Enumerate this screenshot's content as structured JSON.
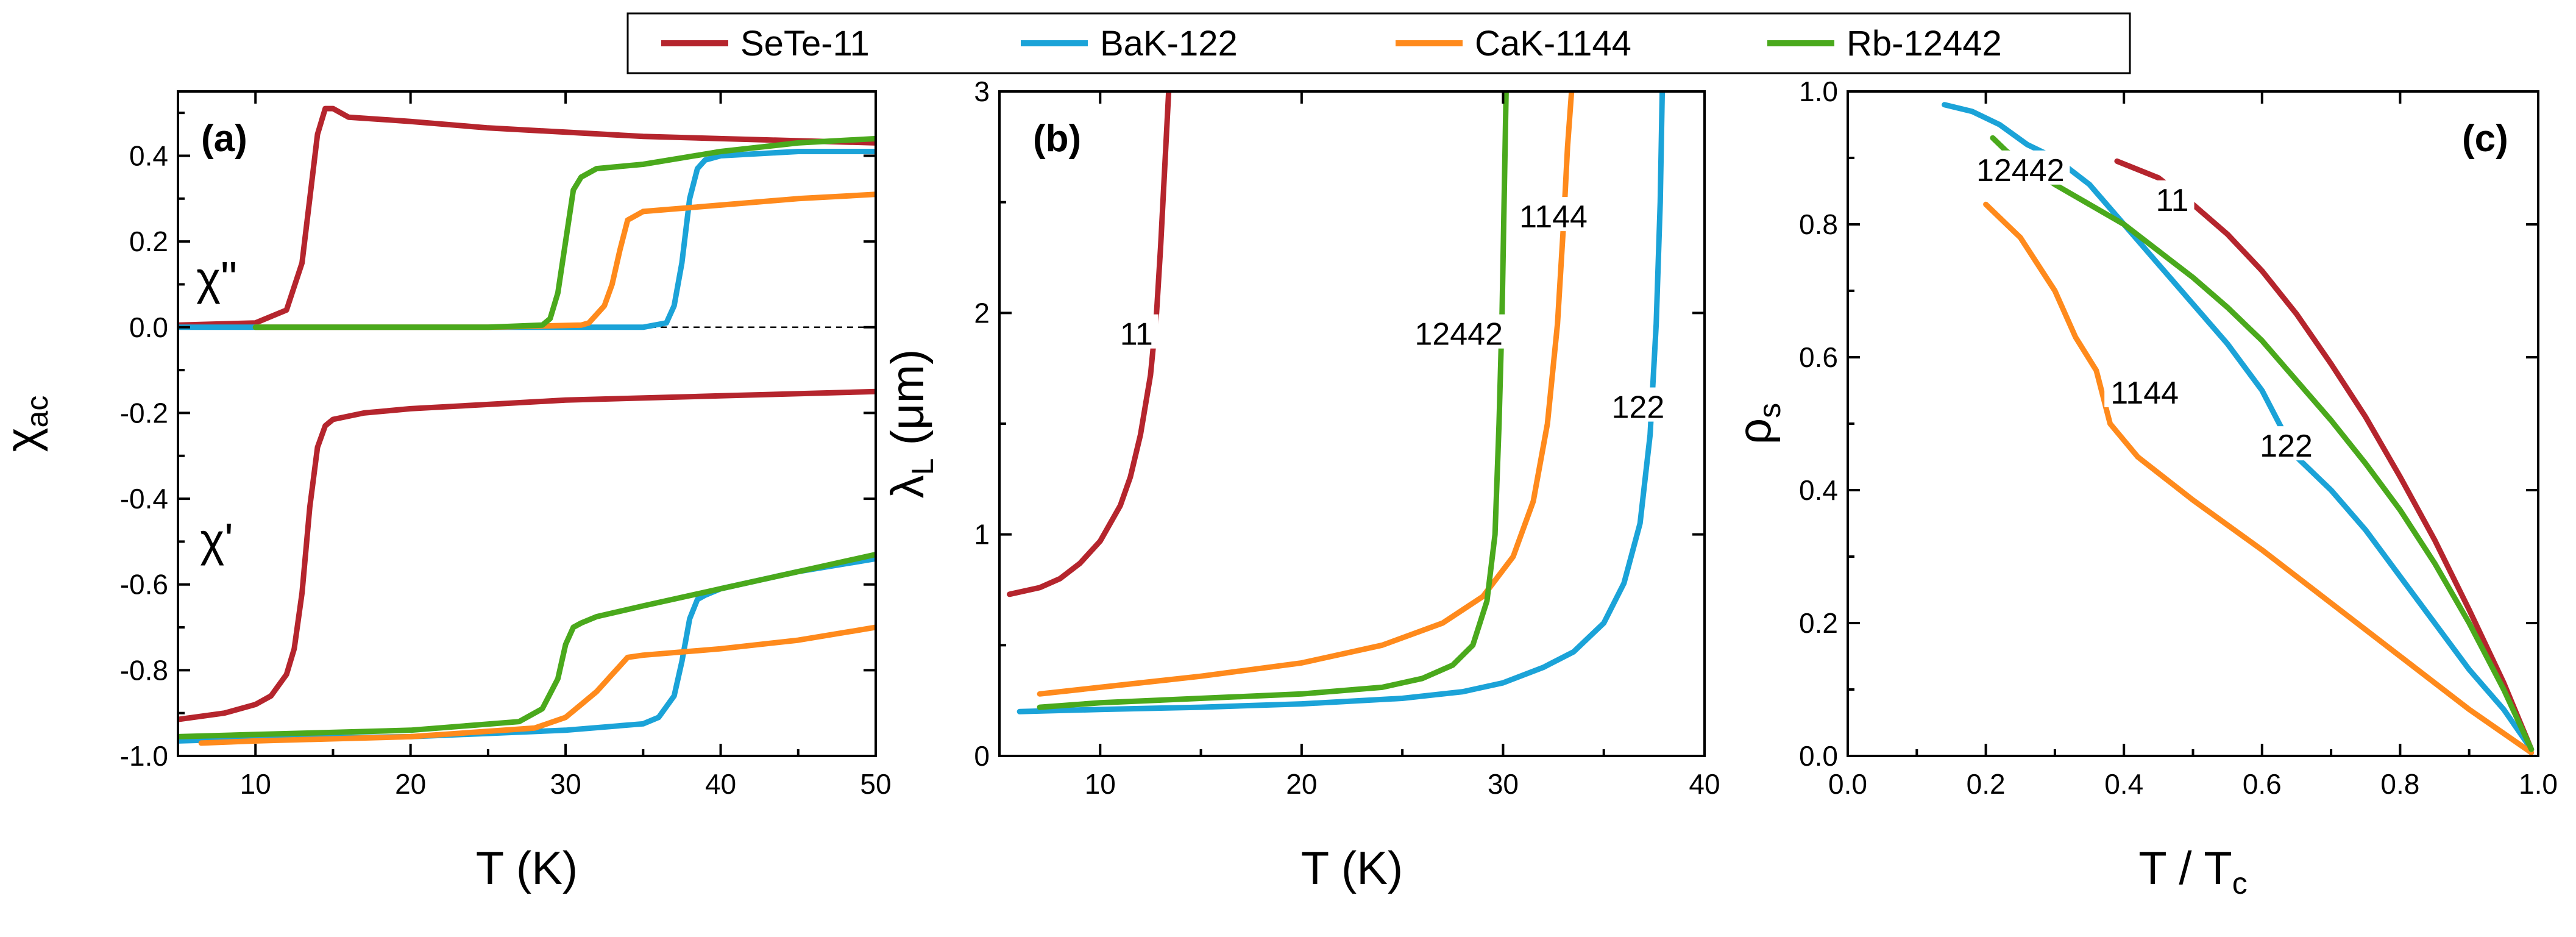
{
  "colors": {
    "SeTe-11": "#b5252d",
    "BaK-122": "#1ba3d8",
    "CaK-1144": "#ff8a1c",
    "Rb-12442": "#4aa91c"
  },
  "legend": {
    "placement": "top-center",
    "entries": [
      {
        "name": "SeTe-11",
        "color": "#b5252d"
      },
      {
        "name": "BaK-122",
        "color": "#1ba3d8"
      },
      {
        "name": "CaK-1144",
        "color": "#ff8a1c"
      },
      {
        "name": "Rb-12442",
        "color": "#4aa91c"
      }
    ]
  },
  "chart_data": [
    {
      "panel": "(a)",
      "type": "line",
      "xlabel": "T  (K)",
      "ylabel": {
        "main": "χ",
        "sub": "ac"
      },
      "xlim": [
        5,
        50
      ],
      "ylim": [
        -1.0,
        0.55
      ],
      "xticks": [
        10,
        20,
        30,
        40,
        50
      ],
      "yticks": [
        -1.0,
        -0.8,
        -0.6,
        -0.4,
        -0.2,
        0.0,
        0.2,
        0.4
      ],
      "ytick_labels": [
        "-1.0",
        "-0.8",
        "-0.6",
        "-0.4",
        "-0.2",
        "0.0",
        "0.2",
        "0.4"
      ],
      "zero_line": true,
      "annotations": [
        {
          "text": "χ\"",
          "x": 7.5,
          "y": 0.1
        },
        {
          "text": "χ'",
          "x": 7.5,
          "y": -0.51
        }
      ],
      "series": [
        {
          "name": "SeTe-11",
          "part": "imaginary",
          "color": "#b5252d",
          "x": [
            5,
            10,
            12,
            13,
            13.5,
            14,
            14.5,
            15,
            16,
            20,
            25,
            30,
            35,
            40,
            45,
            50
          ],
          "y": [
            0.005,
            0.01,
            0.04,
            0.15,
            0.3,
            0.45,
            0.51,
            0.51,
            0.49,
            0.48,
            0.465,
            0.455,
            0.445,
            0.44,
            0.435,
            0.43
          ]
        },
        {
          "name": "BaK-122",
          "part": "imaginary",
          "color": "#1ba3d8",
          "x": [
            5,
            20,
            35,
            36.5,
            37,
            37.5,
            38,
            38.5,
            39,
            40,
            45,
            50
          ],
          "y": [
            0.0,
            0.0,
            0.0,
            0.01,
            0.05,
            0.15,
            0.3,
            0.37,
            0.39,
            0.4,
            0.41,
            0.41
          ]
        },
        {
          "name": "CaK-1144",
          "part": "imaginary",
          "color": "#ff8a1c",
          "x": [
            10,
            25,
            31,
            31.5,
            32,
            32.5,
            33,
            33.5,
            34,
            35,
            40,
            45,
            50
          ],
          "y": [
            0.0,
            0.0,
            0.005,
            0.01,
            0.03,
            0.05,
            0.1,
            0.18,
            0.25,
            0.27,
            0.285,
            0.3,
            0.31
          ]
        },
        {
          "name": "Rb-12442",
          "part": "imaginary",
          "color": "#4aa91c",
          "x": [
            10,
            25,
            28.5,
            29,
            29.5,
            30,
            30.5,
            31,
            32,
            35,
            40,
            45,
            50
          ],
          "y": [
            0.0,
            0.0,
            0.005,
            0.02,
            0.08,
            0.2,
            0.32,
            0.35,
            0.37,
            0.38,
            0.41,
            0.43,
            0.44
          ]
        },
        {
          "name": "SeTe-11",
          "part": "real",
          "color": "#b5252d",
          "x": [
            5,
            8,
            10,
            11,
            12,
            12.5,
            13,
            13.5,
            14,
            14.5,
            15,
            17,
            20,
            25,
            30,
            40,
            50
          ],
          "y": [
            -0.915,
            -0.9,
            -0.88,
            -0.86,
            -0.81,
            -0.75,
            -0.62,
            -0.42,
            -0.28,
            -0.23,
            -0.215,
            -0.2,
            -0.19,
            -0.18,
            -0.17,
            -0.16,
            -0.15
          ]
        },
        {
          "name": "BaK-122",
          "part": "real",
          "color": "#1ba3d8",
          "x": [
            5,
            10,
            20,
            30,
            35,
            36,
            37,
            37.5,
            38,
            38.5,
            39,
            40,
            45,
            50
          ],
          "y": [
            -0.965,
            -0.96,
            -0.955,
            -0.94,
            -0.925,
            -0.91,
            -0.86,
            -0.78,
            -0.68,
            -0.635,
            -0.625,
            -0.61,
            -0.57,
            -0.54
          ]
        },
        {
          "name": "CaK-1144",
          "part": "real",
          "color": "#ff8a1c",
          "x": [
            6.5,
            10,
            20,
            28,
            30,
            31,
            32,
            33,
            34,
            35,
            40,
            45,
            50
          ],
          "y": [
            -0.97,
            -0.965,
            -0.955,
            -0.935,
            -0.91,
            -0.88,
            -0.85,
            -0.81,
            -0.77,
            -0.765,
            -0.75,
            -0.73,
            -0.7
          ]
        },
        {
          "name": "Rb-12442",
          "part": "real",
          "color": "#4aa91c",
          "x": [
            5,
            10,
            20,
            27,
            28.5,
            29.5,
            30,
            30.5,
            31,
            32,
            35,
            40,
            45,
            50
          ],
          "y": [
            -0.955,
            -0.95,
            -0.94,
            -0.92,
            -0.89,
            -0.82,
            -0.74,
            -0.7,
            -0.69,
            -0.675,
            -0.65,
            -0.61,
            -0.57,
            -0.53
          ]
        }
      ]
    },
    {
      "panel": "(b)",
      "type": "line",
      "xlabel": "T  (K)",
      "ylabel": {
        "main": "λ",
        "sub": "L",
        "unit": "(μm)"
      },
      "xlim": [
        5,
        40
      ],
      "ylim": [
        0,
        3
      ],
      "xticks": [
        10,
        20,
        30,
        40
      ],
      "yticks": [
        0,
        1,
        2,
        3
      ],
      "ytick_labels": [
        "0",
        "1",
        "2",
        "3"
      ],
      "annotations": [
        {
          "text": "11",
          "x": 11.8,
          "y": 1.9
        },
        {
          "text": "12442",
          "x": 27.8,
          "y": 1.9
        },
        {
          "text": "1144",
          "x": 32.5,
          "y": 2.43
        },
        {
          "text": "122",
          "x": 36.7,
          "y": 1.57
        }
      ],
      "series": [
        {
          "name": "SeTe-11",
          "color": "#b5252d",
          "x": [
            5.5,
            7,
            8,
            9,
            10,
            11,
            11.5,
            12,
            12.5,
            12.8,
            13.0,
            13.2,
            13.4
          ],
          "y": [
            0.73,
            0.76,
            0.8,
            0.87,
            0.97,
            1.13,
            1.26,
            1.45,
            1.72,
            2.0,
            2.3,
            2.65,
            3.0
          ]
        },
        {
          "name": "BaK-122",
          "color": "#1ba3d8",
          "x": [
            6,
            10,
            15,
            20,
            25,
            28,
            30,
            32,
            33.5,
            35,
            36,
            36.8,
            37.3,
            37.6,
            37.8,
            37.9
          ],
          "y": [
            0.2,
            0.21,
            0.22,
            0.235,
            0.26,
            0.29,
            0.33,
            0.4,
            0.47,
            0.6,
            0.78,
            1.05,
            1.45,
            1.95,
            2.5,
            3.0
          ]
        },
        {
          "name": "CaK-1144",
          "color": "#ff8a1c",
          "x": [
            7,
            10,
            15,
            20,
            24,
            27,
            29,
            30.5,
            31.5,
            32.2,
            32.7,
            33.0,
            33.2,
            33.4
          ],
          "y": [
            0.28,
            0.31,
            0.36,
            0.42,
            0.5,
            0.6,
            0.72,
            0.9,
            1.15,
            1.5,
            1.95,
            2.4,
            2.75,
            3.0
          ]
        },
        {
          "name": "Rb-12442",
          "color": "#4aa91c",
          "x": [
            7,
            10,
            15,
            20,
            24,
            26,
            27.5,
            28.5,
            29.2,
            29.6,
            29.8,
            29.95,
            30.05,
            30.15
          ],
          "y": [
            0.22,
            0.24,
            0.26,
            0.28,
            0.31,
            0.35,
            0.41,
            0.5,
            0.7,
            1.0,
            1.5,
            2.0,
            2.5,
            3.0
          ]
        }
      ]
    },
    {
      "panel": "(c)",
      "type": "line",
      "xlabel": {
        "main": "T / T",
        "sub": "c"
      },
      "ylabel": {
        "main": "ρ",
        "sub": "s"
      },
      "xlim": [
        0,
        1
      ],
      "ylim": [
        0,
        1
      ],
      "xticks": [
        0.0,
        0.2,
        0.4,
        0.6,
        0.8,
        1.0
      ],
      "xtick_labels": [
        "0.0",
        "0.2",
        "0.4",
        "0.6",
        "0.8",
        "1.0"
      ],
      "yticks": [
        0.0,
        0.2,
        0.4,
        0.6,
        0.8,
        1.0
      ],
      "ytick_labels": [
        "0.0",
        "0.2",
        "0.4",
        "0.6",
        "0.8",
        "1.0"
      ],
      "annotations": [
        {
          "text": "12442",
          "x": 0.25,
          "y": 0.88
        },
        {
          "text": "11",
          "x": 0.47,
          "y": 0.835
        },
        {
          "text": "1144",
          "x": 0.43,
          "y": 0.545
        },
        {
          "text": "122",
          "x": 0.635,
          "y": 0.465
        }
      ],
      "series": [
        {
          "name": "SeTe-11",
          "color": "#b5252d",
          "x": [
            0.39,
            0.45,
            0.5,
            0.55,
            0.6,
            0.65,
            0.7,
            0.75,
            0.8,
            0.85,
            0.9,
            0.95,
            0.99
          ],
          "y": [
            0.895,
            0.87,
            0.83,
            0.785,
            0.73,
            0.665,
            0.59,
            0.51,
            0.42,
            0.325,
            0.22,
            0.11,
            0.01
          ]
        },
        {
          "name": "BaK-122",
          "color": "#1ba3d8",
          "x": [
            0.14,
            0.18,
            0.22,
            0.26,
            0.3,
            0.35,
            0.4,
            0.45,
            0.5,
            0.55,
            0.6,
            0.65,
            0.7,
            0.75,
            0.8,
            0.85,
            0.9,
            0.95,
            0.99
          ],
          "y": [
            0.98,
            0.97,
            0.95,
            0.92,
            0.9,
            0.86,
            0.8,
            0.74,
            0.68,
            0.62,
            0.55,
            0.45,
            0.4,
            0.34,
            0.27,
            0.2,
            0.13,
            0.07,
            0.01
          ]
        },
        {
          "name": "CaK-1144",
          "color": "#ff8a1c",
          "x": [
            0.2,
            0.25,
            0.3,
            0.33,
            0.36,
            0.38,
            0.42,
            0.5,
            0.6,
            0.7,
            0.8,
            0.9,
            0.99
          ],
          "y": [
            0.83,
            0.78,
            0.7,
            0.63,
            0.58,
            0.5,
            0.45,
            0.385,
            0.31,
            0.23,
            0.15,
            0.07,
            0.005
          ]
        },
        {
          "name": "Rb-12442",
          "color": "#4aa91c",
          "x": [
            0.21,
            0.23,
            0.3,
            0.35,
            0.4,
            0.45,
            0.5,
            0.55,
            0.6,
            0.65,
            0.7,
            0.75,
            0.8,
            0.85,
            0.9,
            0.95,
            0.99
          ],
          "y": [
            0.93,
            0.91,
            0.86,
            0.83,
            0.8,
            0.76,
            0.72,
            0.675,
            0.625,
            0.565,
            0.505,
            0.44,
            0.37,
            0.29,
            0.2,
            0.1,
            0.01
          ]
        }
      ]
    }
  ]
}
